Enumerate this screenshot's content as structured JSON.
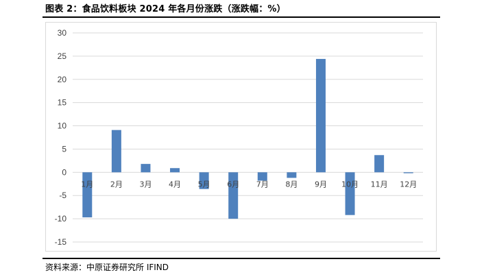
{
  "title": "图表 2：食品饮料板块 2024 年各月份涨跌（涨跌幅：%）",
  "source": "资料来源：中原证券研究所   IFIND",
  "chart_data": {
    "type": "bar",
    "categories": [
      "1月",
      "2月",
      "3月",
      "4月",
      "5月",
      "6月",
      "7月",
      "8月",
      "9月",
      "10月",
      "11月",
      "12月"
    ],
    "values": [
      -9.7,
      9.1,
      1.8,
      0.9,
      -3.6,
      -10.0,
      -1.8,
      -1.2,
      24.4,
      -9.2,
      3.7,
      -0.2
    ],
    "yticks": [
      30,
      25,
      20,
      15,
      10,
      5,
      0,
      -5,
      -10,
      -15
    ],
    "ylim": [
      -15,
      30
    ],
    "bar_color": "#4f81bd",
    "grid": true,
    "legend": "none"
  }
}
